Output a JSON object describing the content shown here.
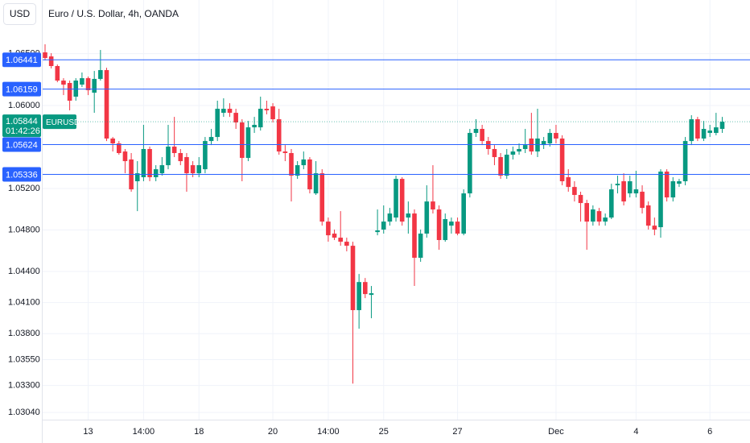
{
  "chart_data": {
    "type": "candlestick",
    "title": "Euro / U.S. Dollar, 4h, OANDA",
    "currency": "USD",
    "symbol": "EURUSD",
    "countdown": "01:42:26",
    "up_color": "#089981",
    "down_color": "#f23645",
    "level_color": "#2962ff",
    "ylim": [
      1.02971,
      1.07018
    ],
    "yticks": [
      {
        "value": 1.065,
        "label": "1.06500"
      },
      {
        "value": 1.06,
        "label": "1.06000"
      },
      {
        "value": 1.052,
        "label": "1.05200"
      },
      {
        "value": 1.048,
        "label": "1.04800"
      },
      {
        "value": 1.044,
        "label": "1.04400"
      },
      {
        "value": 1.041,
        "label": "1.04100"
      },
      {
        "value": 1.038,
        "label": "1.03800"
      },
      {
        "value": 1.0355,
        "label": "1.03550"
      },
      {
        "value": 1.033,
        "label": "1.03300"
      },
      {
        "value": 1.0304,
        "label": "1.03040"
      }
    ],
    "levels": [
      1.06441,
      1.06159,
      1.05624,
      1.05336
    ],
    "last_price": 1.05844,
    "categories": [
      null,
      null,
      null,
      null,
      null,
      null,
      null,
      "13",
      null,
      null,
      null,
      null,
      null,
      null,
      null,
      null,
      "14:00",
      null,
      null,
      null,
      null,
      null,
      null,
      null,
      null,
      "18",
      null,
      null,
      null,
      null,
      null,
      null,
      null,
      null,
      null,
      null,
      null,
      "20",
      null,
      null,
      null,
      null,
      null,
      null,
      null,
      null,
      "14:00",
      null,
      null,
      null,
      null,
      null,
      null,
      null,
      null,
      "25",
      null,
      null,
      null,
      null,
      null,
      null,
      null,
      null,
      null,
      null,
      null,
      "27",
      null,
      null,
      null,
      null,
      null,
      null,
      null,
      null,
      null,
      null,
      null,
      null,
      null,
      null,
      null,
      "Dec",
      null,
      null,
      null,
      null,
      null,
      null,
      null,
      null,
      null,
      null,
      null,
      null,
      "4",
      null,
      null,
      null,
      null,
      null,
      null,
      null,
      null,
      null,
      null,
      null,
      "6",
      null,
      null
    ],
    "open": [
      1.06513,
      1.06474,
      1.06381,
      1.06241,
      1.06218,
      1.06086,
      1.06202,
      1.06264,
      1.06124,
      1.06257,
      1.06342,
      1.05682,
      1.05635,
      1.05557,
      1.0548,
      1.0527,
      1.05309,
      1.05581,
      1.05309,
      1.05347,
      1.05425,
      1.05604,
      1.05542,
      1.05503,
      1.05425,
      1.05347,
      1.05386,
      1.05658,
      1.05697,
      1.0593,
      1.05969,
      1.0593,
      1.05837,
      1.05495,
      1.0579,
      1.0579,
      1.05969,
      1.05992,
      1.05868,
      1.05557,
      1.05542,
      1.05324,
      1.05425,
      1.0548,
      1.05153,
      1.05347,
      1.04881,
      1.04765,
      1.04726,
      1.04687,
      1.04648,
      1.04027,
      1.04298,
      1.04174,
      1.0478,
      1.04804,
      1.04881,
      1.0492,
      1.05293,
      1.0492,
      1.04959,
      1.04532,
      1.04765,
      1.05075,
      1.04998,
      1.04703,
      1.04842,
      1.04881,
      1.04765,
      1.05153,
      1.05736,
      1.05775,
      1.05658,
      1.05581,
      1.05503,
      1.05324,
      1.05526,
      1.05557,
      1.05581,
      1.05682,
      1.05557,
      1.05619,
      1.05635,
      1.05736,
      1.05682,
      1.05309,
      1.05215,
      1.05138,
      1.0506,
      1.04881,
      1.04982,
      1.04881,
      1.0492,
      1.05231,
      1.0527,
      1.05153,
      1.05153,
      1.05169,
      1.05037,
      1.04842,
      1.04827,
      1.05363,
      1.05114,
      1.05246,
      1.0527,
      1.05658,
      1.05868,
      1.05682,
      1.05736,
      1.05736,
      1.05775
    ],
    "high": [
      1.06591,
      1.06505,
      1.06396,
      1.06264,
      1.06241,
      1.06264,
      1.06319,
      1.0628,
      1.06334,
      1.06536,
      1.06365,
      1.05697,
      1.05658,
      1.05581,
      1.05542,
      1.05464,
      1.05814,
      1.05604,
      1.05425,
      1.05503,
      1.05814,
      1.05891,
      1.05581,
      1.05542,
      1.05464,
      1.05503,
      1.05697,
      1.05775,
      1.06047,
      1.0607,
      1.06023,
      1.05969,
      1.05868,
      1.05852,
      1.05891,
      1.06086,
      1.06047,
      1.06023,
      1.05969,
      1.05619,
      1.05581,
      1.05464,
      1.05557,
      1.05503,
      1.05464,
      1.05386,
      1.0492,
      1.04804,
      1.04982,
      1.04726,
      1.04687,
      1.04376,
      1.04337,
      1.0426,
      1.04998,
      1.05037,
      1.05013,
      1.05324,
      1.05309,
      1.05075,
      1.04998,
      1.04804,
      1.05231,
      1.05425,
      1.05037,
      1.04959,
      1.0492,
      1.0492,
      1.05192,
      1.05775,
      1.05868,
      1.05814,
      1.05697,
      1.05619,
      1.05542,
      1.05581,
      1.05604,
      1.05635,
      1.05775,
      1.0593,
      1.05969,
      1.05697,
      1.05775,
      1.05814,
      1.05713,
      1.05386,
      1.0527,
      1.05169,
      1.05091,
      1.05037,
      1.05013,
      1.04959,
      1.05246,
      1.05324,
      1.05347,
      1.05324,
      1.05371,
      1.05231,
      1.05075,
      1.0492,
      1.05386,
      1.05386,
      1.05309,
      1.05293,
      1.05697,
      1.05907,
      1.05891,
      1.05852,
      1.05814,
      1.0593,
      1.05891
    ],
    "low": [
      1.06435,
      1.06358,
      1.06225,
      1.06101,
      1.05954,
      1.06047,
      1.06179,
      1.06101,
      1.0593,
      1.06241,
      1.05658,
      1.05557,
      1.05526,
      1.05347,
      1.05169,
      1.04982,
      1.0527,
      1.0527,
      1.0527,
      1.05324,
      1.05386,
      1.05503,
      1.05425,
      1.05169,
      1.05309,
      1.05309,
      1.05347,
      1.05619,
      1.05658,
      1.05891,
      1.05891,
      1.05775,
      1.0527,
      1.05464,
      1.05736,
      1.05759,
      1.05915,
      1.05837,
      1.05526,
      1.05464,
      1.05075,
      1.05293,
      1.05386,
      1.05153,
      1.05138,
      1.04842,
      1.04687,
      1.04703,
      1.04648,
      1.04594,
      1.03319,
      1.03848,
      1.04143,
      1.03949,
      1.04749,
      1.04765,
      1.04842,
      1.04881,
      1.04842,
      1.04765,
      1.0426,
      1.04493,
      1.04726,
      1.04959,
      1.04609,
      1.04687,
      1.04765,
      1.04749,
      1.04749,
      1.05114,
      1.05697,
      1.05619,
      1.05526,
      1.05425,
      1.05293,
      1.05293,
      1.0548,
      1.05526,
      1.05542,
      1.05526,
      1.05503,
      1.05581,
      1.05604,
      1.05635,
      1.05231,
      1.05169,
      1.05075,
      1.04881,
      1.04609,
      1.04842,
      1.04842,
      1.04842,
      1.04905,
      1.05153,
      1.05037,
      1.05114,
      1.05114,
      1.04959,
      1.04804,
      1.04749,
      1.04726,
      1.05075,
      1.05075,
      1.05215,
      1.05231,
      1.05619,
      1.05658,
      1.05658,
      1.05697,
      1.05713,
      1.05736
    ],
    "close": [
      1.06459,
      1.06381,
      1.06241,
      1.06202,
      1.06047,
      1.06241,
      1.06264,
      1.06148,
      1.06257,
      1.06342,
      1.05682,
      1.05635,
      1.05542,
      1.05464,
      1.05192,
      1.05347,
      1.05581,
      1.05309,
      1.05386,
      1.05425,
      1.05604,
      1.05542,
      1.05464,
      1.05347,
      1.05347,
      1.05425,
      1.05658,
      1.05697,
      1.05969,
      1.05969,
      1.0593,
      1.05837,
      1.05495,
      1.0579,
      1.05814,
      1.05969,
      1.05954,
      1.05868,
      1.05557,
      1.05542,
      1.05324,
      1.05425,
      1.0548,
      1.05192,
      1.05347,
      1.04881,
      1.04749,
      1.04726,
      1.04687,
      1.04648,
      1.04027,
      1.04298,
      1.04182,
      1.0419,
      1.04796,
      1.04881,
      1.04959,
      1.05293,
      1.04881,
      1.04959,
      1.04532,
      1.04765,
      1.05075,
      1.04998,
      1.04703,
      1.04905,
      1.04881,
      1.04765,
      1.05153,
      1.05736,
      1.05775,
      1.05658,
      1.05581,
      1.05503,
      1.05324,
      1.05526,
      1.05557,
      1.05581,
      1.05619,
      1.05557,
      1.05682,
      1.05658,
      1.05736,
      1.05682,
      1.0527,
      1.05215,
      1.05138,
      1.0506,
      1.04881,
      1.04998,
      1.04881,
      1.0492,
      1.05192,
      1.05246,
      1.05075,
      1.0527,
      1.05192,
      1.05013,
      1.04842,
      1.04804,
      1.05363,
      1.05114,
      1.0527,
      1.0527,
      1.05658,
      1.05868,
      1.05682,
      1.05775,
      1.05759,
      1.0579,
      1.05844
    ]
  }
}
